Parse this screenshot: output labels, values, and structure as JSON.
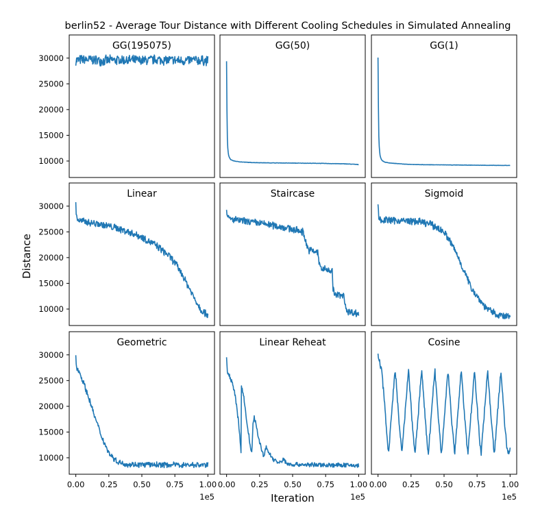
{
  "figure": {
    "title": "berlin52 - Average Tour Distance with Different Cooling Schedules in Simulated Annealing",
    "xlabel": "Iteration",
    "ylabel": "Distance",
    "x_offset_text": "1e5",
    "line_color": "#1f77b4"
  },
  "chart_data": [
    {
      "type": "line",
      "title": "GG(195075)",
      "xlim": [
        -0.05,
        1.05
      ],
      "ylim": [
        6800,
        34500
      ],
      "yticks": [
        10000,
        15000,
        20000,
        25000,
        30000
      ],
      "xticks": [
        0,
        0.25,
        0.5,
        0.75,
        1.0
      ],
      "series": [
        {
          "x": [
            0,
            0.1,
            0.2,
            0.3,
            0.4,
            0.5,
            0.6,
            0.7,
            0.8,
            0.9,
            1.0
          ],
          "y": [
            29600,
            29700,
            29500,
            29600,
            29600,
            29500,
            29700,
            29600,
            29500,
            29600,
            29500
          ],
          "noise": 1100
        }
      ]
    },
    {
      "type": "line",
      "title": "GG(50)",
      "xlim": [
        -0.05,
        1.05
      ],
      "ylim": [
        6800,
        34500
      ],
      "yticks": [
        10000,
        15000,
        20000,
        25000,
        30000
      ],
      "xticks": [
        0,
        0.25,
        0.5,
        0.75,
        1.0
      ],
      "series": [
        {
          "x": [
            0,
            0.003,
            0.006,
            0.01,
            0.015,
            0.02,
            0.03,
            0.05,
            0.08,
            0.12,
            0.2,
            0.3,
            0.5,
            0.7,
            0.9,
            0.98,
            1.0
          ],
          "y": [
            29400,
            20000,
            14500,
            12200,
            11200,
            10700,
            10300,
            10050,
            9900,
            9800,
            9700,
            9650,
            9600,
            9550,
            9450,
            9350,
            9300
          ],
          "noise": 40
        }
      ]
    },
    {
      "type": "line",
      "title": "GG(1)",
      "xlim": [
        -0.05,
        1.05
      ],
      "ylim": [
        6800,
        34500
      ],
      "yticks": [
        10000,
        15000,
        20000,
        25000,
        30000
      ],
      "xticks": [
        0,
        0.25,
        0.5,
        0.75,
        1.0
      ],
      "series": [
        {
          "x": [
            0,
            0.003,
            0.006,
            0.01,
            0.015,
            0.02,
            0.03,
            0.05,
            0.08,
            0.12,
            0.2,
            0.3,
            0.5,
            0.7,
            0.9,
            1.0
          ],
          "y": [
            30100,
            21000,
            15000,
            12500,
            11200,
            10600,
            10100,
            9800,
            9650,
            9550,
            9400,
            9300,
            9250,
            9200,
            9150,
            9150
          ],
          "noise": 30
        }
      ]
    },
    {
      "type": "line",
      "title": "Linear",
      "xlim": [
        -0.05,
        1.05
      ],
      "ylim": [
        6800,
        34500
      ],
      "yticks": [
        10000,
        15000,
        20000,
        25000,
        30000
      ],
      "xticks": [
        0,
        0.25,
        0.5,
        0.75,
        1.0
      ],
      "series": [
        {
          "x": [
            0,
            0.005,
            0.02,
            0.1,
            0.2,
            0.3,
            0.4,
            0.5,
            0.6,
            0.7,
            0.75,
            0.8,
            0.85,
            0.9,
            0.95,
            1.0
          ],
          "y": [
            30500,
            28000,
            27200,
            26800,
            26400,
            25800,
            25000,
            24000,
            22500,
            20500,
            19000,
            17000,
            14500,
            12000,
            9800,
            8900
          ],
          "noise": 800
        }
      ]
    },
    {
      "type": "line",
      "title": "Staircase",
      "xlim": [
        -0.05,
        1.05
      ],
      "ylim": [
        6800,
        34500
      ],
      "yticks": [
        10000,
        15000,
        20000,
        25000,
        30000
      ],
      "xticks": [
        0,
        0.25,
        0.5,
        0.75,
        1.0
      ],
      "series": [
        {
          "x": [
            0,
            0.005,
            0.02,
            0.15,
            0.3,
            0.45,
            0.58,
            0.6,
            0.62,
            0.69,
            0.7,
            0.72,
            0.8,
            0.805,
            0.82,
            0.89,
            0.9,
            0.92,
            1.0
          ],
          "y": [
            29800,
            28000,
            27500,
            27000,
            26500,
            25800,
            25000,
            23000,
            21500,
            21000,
            19000,
            17800,
            17500,
            14000,
            12800,
            12500,
            10500,
            9500,
            9100
          ],
          "noise": 800
        }
      ]
    },
    {
      "type": "line",
      "title": "Sigmoid",
      "xlim": [
        -0.05,
        1.05
      ],
      "ylim": [
        6800,
        34500
      ],
      "yticks": [
        10000,
        15000,
        20000,
        25000,
        30000
      ],
      "xticks": [
        0,
        0.25,
        0.5,
        0.75,
        1.0
      ],
      "series": [
        {
          "x": [
            0,
            0.005,
            0.02,
            0.15,
            0.3,
            0.4,
            0.5,
            0.55,
            0.6,
            0.65,
            0.7,
            0.75,
            0.8,
            0.85,
            0.9,
            0.95,
            1.0
          ],
          "y": [
            30400,
            28000,
            27300,
            27200,
            27000,
            26500,
            25000,
            23000,
            20500,
            17500,
            14500,
            12500,
            10800,
            9600,
            8900,
            8600,
            8500
          ],
          "noise": 800
        }
      ]
    },
    {
      "type": "line",
      "title": "Geometric",
      "xlim": [
        -0.05,
        1.05
      ],
      "ylim": [
        6800,
        34500
      ],
      "yticks": [
        10000,
        15000,
        20000,
        25000,
        30000
      ],
      "xticks": [
        0,
        0.25,
        0.5,
        0.75,
        1.0
      ],
      "series": [
        {
          "x": [
            0,
            0.005,
            0.03,
            0.06,
            0.1,
            0.15,
            0.2,
            0.25,
            0.3,
            0.35,
            0.4,
            0.5,
            0.6,
            0.8,
            1.0
          ],
          "y": [
            30000,
            27500,
            26500,
            24500,
            21500,
            17500,
            13800,
            11000,
            9500,
            8900,
            8700,
            8650,
            8650,
            8620,
            8600
          ],
          "noise": 600
        }
      ]
    },
    {
      "type": "line",
      "title": "Linear Reheat",
      "xlim": [
        -0.05,
        1.05
      ],
      "ylim": [
        6800,
        34500
      ],
      "yticks": [
        10000,
        15000,
        20000,
        25000,
        30000
      ],
      "xticks": [
        0,
        0.25,
        0.5,
        0.75,
        1.0
      ],
      "series": [
        {
          "x": [
            0,
            0.005,
            0.03,
            0.06,
            0.09,
            0.11,
            0.112,
            0.13,
            0.15,
            0.19,
            0.2,
            0.21,
            0.24,
            0.28,
            0.3,
            0.32,
            0.35,
            0.4,
            0.43,
            0.46,
            0.5,
            0.7,
            1.0
          ],
          "y": [
            29200,
            27000,
            25500,
            23000,
            17000,
            11000,
            24200,
            22000,
            17500,
            10500,
            16500,
            18000,
            14000,
            10300,
            12000,
            11000,
            9800,
            8900,
            9700,
            8800,
            8700,
            8600,
            8500
          ],
          "noise": 500
        }
      ]
    },
    {
      "type": "line",
      "title": "Cosine",
      "xlim": [
        -0.05,
        1.05
      ],
      "ylim": [
        6800,
        34500
      ],
      "yticks": [
        10000,
        15000,
        20000,
        25000,
        30000
      ],
      "xticks": [
        0,
        0.25,
        0.5,
        0.75,
        1.0
      ],
      "series": [
        {
          "x": [
            0,
            0.03,
            0.06,
            0.08,
            0.1,
            0.13,
            0.16,
            0.18,
            0.2,
            0.23,
            0.26,
            0.28,
            0.3,
            0.33,
            0.36,
            0.38,
            0.4,
            0.43,
            0.46,
            0.48,
            0.5,
            0.53,
            0.56,
            0.58,
            0.6,
            0.63,
            0.66,
            0.68,
            0.7,
            0.73,
            0.76,
            0.78,
            0.8,
            0.83,
            0.86,
            0.88,
            0.9,
            0.93,
            0.96,
            0.98,
            1.0
          ],
          "y": [
            30000,
            26500,
            17000,
            10700,
            17500,
            27500,
            16500,
            10800,
            17000,
            27200,
            16500,
            10700,
            17000,
            27200,
            16500,
            10600,
            17000,
            27200,
            16500,
            10600,
            17000,
            27200,
            16500,
            10700,
            17000,
            27200,
            16500,
            10700,
            17000,
            27200,
            16500,
            10600,
            17000,
            27200,
            16500,
            10700,
            17000,
            26800,
            16500,
            11000,
            11500
          ],
          "noise": 700
        }
      ]
    }
  ]
}
